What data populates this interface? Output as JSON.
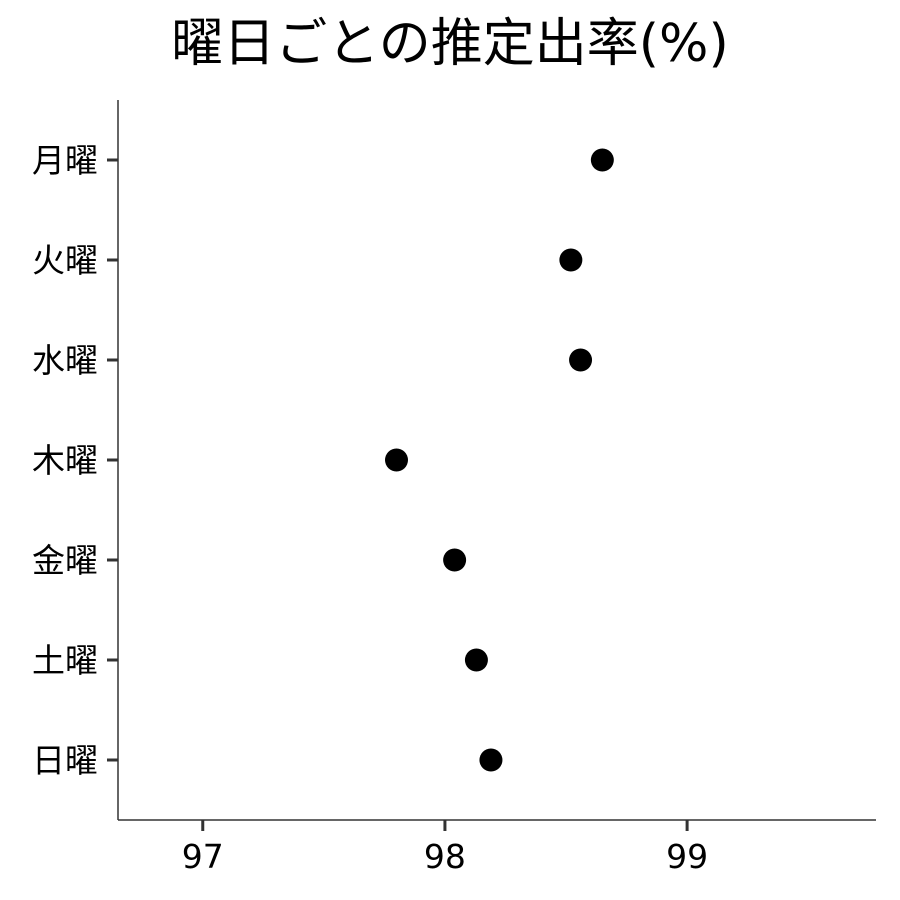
{
  "chart_data": {
    "type": "scatter",
    "title": "曜日ごとの推定出率(%)",
    "xlabel": "",
    "ylabel": "",
    "categories": [
      "月曜",
      "火曜",
      "水曜",
      "木曜",
      "金曜",
      "土曜",
      "日曜"
    ],
    "values": [
      98.65,
      98.52,
      98.56,
      97.8,
      98.04,
      98.13,
      98.19
    ],
    "xlim": [
      96.65,
      99.78
    ],
    "xticks": [
      97,
      98,
      99
    ],
    "xtick_labels": [
      "97",
      "98",
      "99"
    ],
    "grid": false,
    "marker_color": "#000000",
    "axis_color": "#333333"
  }
}
